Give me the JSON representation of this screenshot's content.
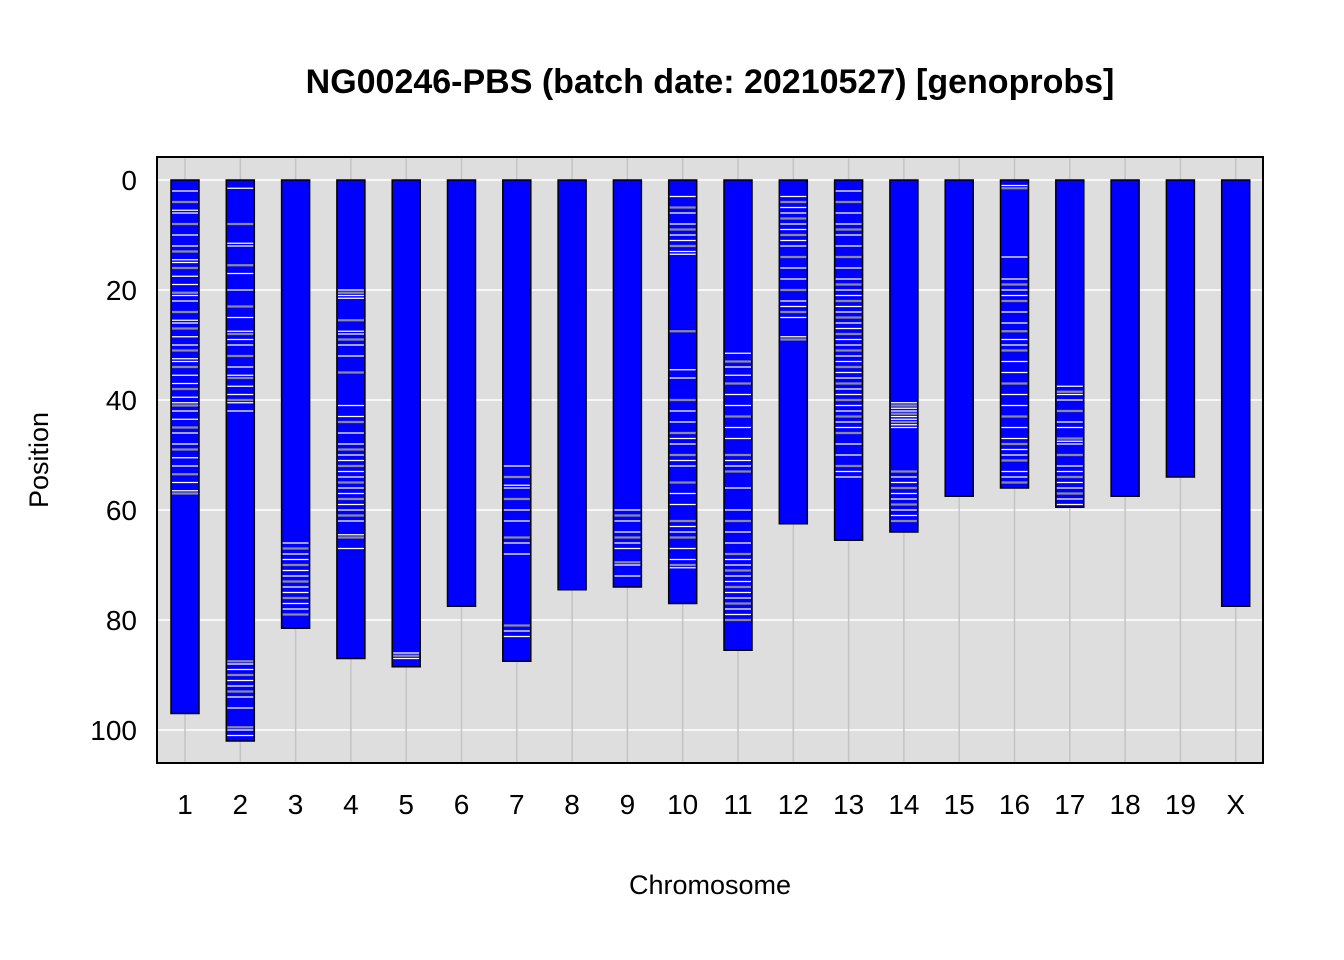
{
  "chart_data": {
    "type": "chromosome-ideogram",
    "title": "NG00246-PBS (batch date: 20210527) [genoprobs]",
    "xlabel": "Chromosome",
    "ylabel": "Position",
    "ylim": [
      0,
      106
    ],
    "y_reversed": true,
    "y_ticks": [
      0,
      20,
      40,
      60,
      80,
      100
    ],
    "grid": true,
    "colors": {
      "background": "#dedede",
      "gridline": "#ffffff",
      "bar": "#0000ff",
      "bar_outline": "#000000",
      "mark_white": "#ffffff",
      "mark_gray": "#8c8c8c"
    },
    "chromosomes": [
      {
        "name": "1",
        "length": 97,
        "marks": [
          2,
          4,
          5.5,
          6,
          8,
          10,
          12,
          13,
          14.5,
          15,
          16,
          17.5,
          19,
          20.5,
          21,
          22,
          24,
          25.5,
          26,
          27,
          28.5,
          30,
          31,
          32.5,
          33,
          34,
          35.5,
          37,
          38,
          39.5,
          40.5,
          41,
          42,
          43.5,
          45,
          46,
          48,
          49,
          50.5,
          52,
          53.5,
          55,
          56.5,
          57
        ]
      },
      {
        "name": "2",
        "length": 102,
        "marks": [
          1.5,
          8,
          11.5,
          12,
          15.5,
          17,
          20,
          23,
          25,
          27.5,
          28,
          29,
          30,
          32,
          34,
          35.5,
          36,
          37.5,
          39,
          40,
          40.5,
          42,
          87.5,
          88,
          89,
          90,
          91,
          92,
          93,
          94,
          96,
          99.5,
          100,
          101
        ]
      },
      {
        "name": "3",
        "length": 81.5,
        "marks": [
          66,
          67,
          68,
          69,
          70,
          71,
          72,
          73,
          74,
          75,
          76,
          77,
          78,
          79
        ]
      },
      {
        "name": "4",
        "length": 87,
        "marks": [
          20,
          20.5,
          21,
          21.5,
          25.5,
          27.5,
          28,
          29,
          30,
          32,
          35,
          41,
          43,
          44,
          46,
          48,
          49,
          50,
          51,
          52,
          53,
          54,
          55,
          56,
          57,
          58,
          59,
          60,
          61,
          62,
          64.5,
          65,
          67
        ]
      },
      {
        "name": "5",
        "length": 88.5,
        "marks": [
          86,
          86.5,
          87
        ]
      },
      {
        "name": "6",
        "length": 77.5,
        "marks": []
      },
      {
        "name": "7",
        "length": 87.5,
        "marks": [
          52,
          54,
          55.5,
          56,
          58,
          60,
          62,
          65,
          66,
          68,
          81,
          82,
          83
        ]
      },
      {
        "name": "8",
        "length": 74.5,
        "marks": []
      },
      {
        "name": "9",
        "length": 74,
        "marks": [
          60,
          61,
          62,
          64,
          65,
          66,
          67,
          69.5,
          70,
          72
        ]
      },
      {
        "name": "10",
        "length": 77,
        "marks": [
          3,
          5,
          6,
          8,
          9,
          10,
          11,
          12,
          13,
          13.5,
          27.5,
          34.5,
          36,
          40,
          42,
          44,
          46,
          47,
          48,
          50,
          51,
          52,
          55,
          57,
          59,
          62,
          63,
          64,
          65,
          67,
          69,
          70,
          70.5
        ]
      },
      {
        "name": "11",
        "length": 85.5,
        "marks": [
          31.5,
          33,
          34,
          35.5,
          37,
          39,
          41,
          43,
          45,
          47,
          50,
          51,
          52,
          53,
          56,
          60,
          62,
          64,
          66,
          68,
          69,
          70,
          71,
          72,
          73,
          74,
          75,
          76,
          77,
          78,
          79,
          80
        ]
      },
      {
        "name": "12",
        "length": 62.5,
        "marks": [
          3,
          4,
          5,
          6,
          7,
          8,
          9,
          10,
          11,
          12,
          14,
          16,
          18,
          20,
          22,
          23,
          24,
          25,
          28.5,
          29
        ]
      },
      {
        "name": "13",
        "length": 65.5,
        "marks": [
          2,
          4,
          6,
          8,
          9,
          10,
          12,
          14,
          16,
          18,
          19,
          20,
          21,
          22,
          23,
          24,
          25,
          26,
          27,
          28,
          29,
          30,
          31,
          32,
          33,
          34,
          35,
          36,
          37,
          38,
          39,
          40,
          41,
          42,
          43,
          44,
          45,
          46,
          48,
          50,
          52,
          53,
          54
        ]
      },
      {
        "name": "14",
        "length": 64,
        "marks": [
          40.5,
          41,
          41.5,
          42,
          42.5,
          43,
          43.5,
          44,
          44.5,
          45,
          53,
          54,
          55,
          56,
          57,
          58,
          59,
          60,
          61,
          62
        ]
      },
      {
        "name": "15",
        "length": 57.5,
        "marks": []
      },
      {
        "name": "16",
        "length": 56,
        "marks": [
          1,
          1.5,
          14,
          18,
          19,
          20,
          21,
          22,
          24,
          26,
          27.5,
          29,
          30,
          31,
          33,
          35,
          37,
          39,
          41,
          43,
          45,
          47,
          48,
          49,
          50,
          51,
          53,
          54,
          55
        ]
      },
      {
        "name": "17",
        "length": 59.5,
        "marks": [
          37.5,
          38.5,
          39,
          40,
          42,
          44,
          45,
          47,
          47.5,
          48,
          50,
          52,
          53,
          54,
          55,
          56,
          57,
          58,
          59
        ]
      },
      {
        "name": "18",
        "length": 57.5,
        "marks": []
      },
      {
        "name": "19",
        "length": 54,
        "marks": []
      },
      {
        "name": "X",
        "length": 77.5,
        "marks": []
      }
    ]
  }
}
